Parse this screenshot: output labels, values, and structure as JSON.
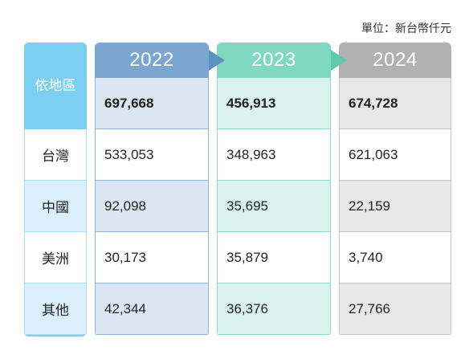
{
  "unit_note": "單位：新台幣仟元",
  "row_header": "依地區",
  "years": [
    "2022",
    "2023",
    "2024"
  ],
  "rows": [
    {
      "label": "",
      "values": [
        "697,668",
        "456,913",
        "674,728"
      ]
    },
    {
      "label": "台灣",
      "values": [
        "533,053",
        "348,963",
        "621,063"
      ]
    },
    {
      "label": "中國",
      "values": [
        "92,098",
        "35,695",
        "22,159"
      ]
    },
    {
      "label": "美洲",
      "values": [
        "30,173",
        "35,879",
        "3,740"
      ]
    },
    {
      "label": "其他",
      "values": [
        "42,344",
        "36,376",
        "27,766"
      ]
    }
  ],
  "colors": {
    "header_2022": "#7aa6cf",
    "header_2023": "#7ed8c2",
    "header_2024": "#b1b1b1",
    "label_header": "#7dcff2"
  }
}
